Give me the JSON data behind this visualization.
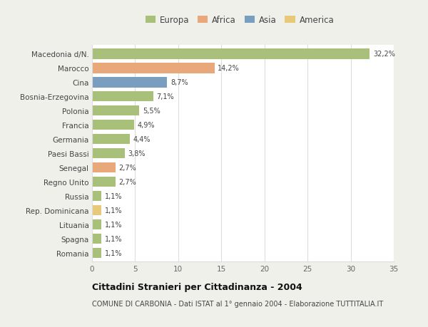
{
  "categories": [
    "Romania",
    "Spagna",
    "Lituania",
    "Rep. Dominicana",
    "Russia",
    "Regno Unito",
    "Senegal",
    "Paesi Bassi",
    "Germania",
    "Francia",
    "Polonia",
    "Bosnia-Erzegovina",
    "Cina",
    "Marocco",
    "Macedonia d/N."
  ],
  "values": [
    1.1,
    1.1,
    1.1,
    1.1,
    1.1,
    2.7,
    2.7,
    3.8,
    4.4,
    4.9,
    5.5,
    7.1,
    8.7,
    14.2,
    32.2
  ],
  "colors": [
    "#a8c07a",
    "#a8c07a",
    "#a8c07a",
    "#e8c97a",
    "#a8c07a",
    "#a8c07a",
    "#e8a87a",
    "#a8c07a",
    "#a8c07a",
    "#a8c07a",
    "#a8c07a",
    "#a8c07a",
    "#7a9ec0",
    "#e8a87a",
    "#a8c07a"
  ],
  "labels": [
    "1,1%",
    "1,1%",
    "1,1%",
    "1,1%",
    "1,1%",
    "2,7%",
    "2,7%",
    "3,8%",
    "4,4%",
    "4,9%",
    "5,5%",
    "7,1%",
    "8,7%",
    "14,2%",
    "32,2%"
  ],
  "legend": {
    "Europa": "#a8c07a",
    "Africa": "#e8a87a",
    "Asia": "#7a9ec0",
    "America": "#e8c97a"
  },
  "xlim": [
    0,
    35
  ],
  "xticks": [
    0,
    5,
    10,
    15,
    20,
    25,
    30,
    35
  ],
  "title": "Cittadini Stranieri per Cittadinanza - 2004",
  "subtitle": "COMUNE DI CARBONIA - Dati ISTAT al 1° gennaio 2004 - Elaborazione TUTTITALIA.IT",
  "bg_color": "#f0f0eb",
  "plot_bg_color": "#ffffff",
  "grid_color": "#dddddd",
  "bar_height": 0.72
}
